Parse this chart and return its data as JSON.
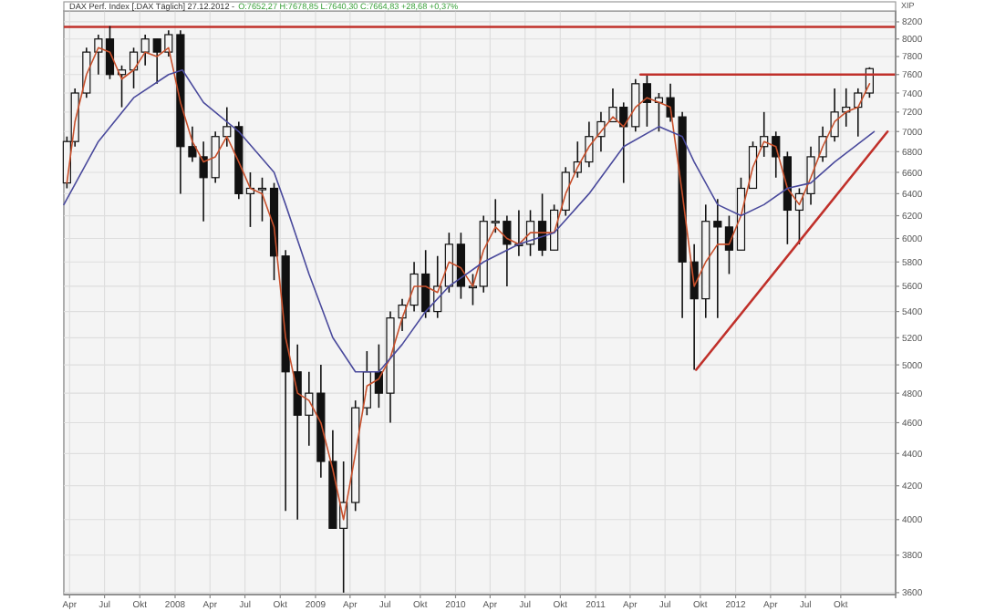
{
  "chart_data": {
    "type": "candlestick",
    "title": "DAX Perf. Index [.DAX Täglich] 27.12.2012 -",
    "subtitle": "O:7652,27 H:7678,85 L:7640,30 C:7664,83 +28,68 +0,37%",
    "ylabel": "XIP",
    "log": "y",
    "grid": true,
    "xlim": [
      "2007-03-17",
      "2013-02-21"
    ],
    "xticks": [
      {
        "value": "2007-04-01",
        "label": "Apr"
      },
      {
        "value": "2007-07-01",
        "label": "Jul"
      },
      {
        "value": "2007-10-01",
        "label": "Okt"
      },
      {
        "value": "2008-01-01",
        "label": "2008"
      },
      {
        "value": "2008-04-01",
        "label": "Apr"
      },
      {
        "value": "2008-07-01",
        "label": "Jul"
      },
      {
        "value": "2008-10-01",
        "label": "Okt"
      },
      {
        "value": "2009-01-01",
        "label": "2009"
      },
      {
        "value": "2009-04-01",
        "label": "Apr"
      },
      {
        "value": "2009-07-01",
        "label": "Jul"
      },
      {
        "value": "2009-10-01",
        "label": "Okt"
      },
      {
        "value": "2010-01-01",
        "label": "2010"
      },
      {
        "value": "2010-04-01",
        "label": "Apr"
      },
      {
        "value": "2010-07-01",
        "label": "Jul"
      },
      {
        "value": "2010-10-01",
        "label": "Okt"
      },
      {
        "value": "2011-01-01",
        "label": "2011"
      },
      {
        "value": "2011-04-01",
        "label": "Apr"
      },
      {
        "value": "2011-07-01",
        "label": "Jul"
      },
      {
        "value": "2011-10-01",
        "label": "Okt"
      },
      {
        "value": "2012-01-01",
        "label": "2012"
      },
      {
        "value": "2012-04-01",
        "label": "Apr"
      },
      {
        "value": "2012-07-01",
        "label": "Jul"
      },
      {
        "value": "2012-10-01",
        "label": "Okt"
      }
    ],
    "ylim": [
      3590,
      8330
    ],
    "yticks": [
      3600,
      3800,
      4000,
      4200,
      4400,
      4600,
      4800,
      5000,
      5200,
      5400,
      5600,
      5800,
      6000,
      6200,
      6400,
      6600,
      6800,
      7000,
      7200,
      7400,
      7600,
      7800,
      8000,
      8200
    ],
    "color": "#111111",
    "x": [
      "2007-03-25",
      "2007-04-15",
      "2007-05-15",
      "2007-06-15",
      "2007-07-15",
      "2007-08-15",
      "2007-09-15",
      "2007-10-15",
      "2007-11-15",
      "2007-12-15",
      "2008-01-15",
      "2008-02-15",
      "2008-03-15",
      "2008-04-15",
      "2008-05-15",
      "2008-06-15",
      "2008-07-15",
      "2008-08-15",
      "2008-09-15",
      "2008-10-15",
      "2008-11-15",
      "2008-12-15",
      "2009-01-15",
      "2009-02-15",
      "2009-03-15",
      "2009-04-15",
      "2009-05-15",
      "2009-06-15",
      "2009-07-15",
      "2009-08-15",
      "2009-09-15",
      "2009-10-15",
      "2009-11-15",
      "2009-12-15",
      "2010-01-15",
      "2010-02-15",
      "2010-03-15",
      "2010-04-15",
      "2010-05-15",
      "2010-06-15",
      "2010-07-15",
      "2010-08-15",
      "2010-09-15",
      "2010-10-15",
      "2010-11-15",
      "2010-12-15",
      "2011-01-15",
      "2011-02-15",
      "2011-03-15",
      "2011-04-15",
      "2011-05-15",
      "2011-06-15",
      "2011-07-15",
      "2011-08-15",
      "2011-09-15",
      "2011-10-15",
      "2011-11-15",
      "2011-12-15",
      "2012-01-15",
      "2012-02-15",
      "2012-03-15",
      "2012-04-15",
      "2012-05-15",
      "2012-06-15",
      "2012-07-15",
      "2012-08-15",
      "2012-09-15",
      "2012-10-15",
      "2012-11-15",
      "2012-12-15"
    ],
    "ohlc": [
      [
        6500,
        6950,
        6450,
        6900
      ],
      [
        6900,
        7450,
        6850,
        7400
      ],
      [
        7400,
        7900,
        7350,
        7850
      ],
      [
        7850,
        8050,
        7600,
        8000
      ],
      [
        8000,
        8150,
        7550,
        7600
      ],
      [
        7600,
        7700,
        7250,
        7650
      ],
      [
        7650,
        7900,
        7450,
        7850
      ],
      [
        7850,
        8050,
        7700,
        8000
      ],
      [
        8000,
        8000,
        7500,
        7850
      ],
      [
        7850,
        8100,
        7800,
        8050
      ],
      [
        8050,
        8100,
        6400,
        6850
      ],
      [
        6850,
        7050,
        6700,
        6750
      ],
      [
        6750,
        6900,
        6150,
        6550
      ],
      [
        6550,
        7000,
        6500,
        6950
      ],
      [
        6950,
        7250,
        6850,
        7050
      ],
      [
        7050,
        7100,
        6350,
        6400
      ],
      [
        6400,
        6600,
        6100,
        6450
      ],
      [
        6450,
        6550,
        6150,
        6450
      ],
      [
        6450,
        6500,
        5650,
        5850
      ],
      [
        5850,
        5900,
        4050,
        4950
      ],
      [
        4950,
        5150,
        4000,
        4650
      ],
      [
        4650,
        4950,
        4450,
        4800
      ],
      [
        4800,
        5000,
        4250,
        4350
      ],
      [
        4350,
        4550,
        3950,
        3950
      ],
      [
        3950,
        4350,
        3600,
        4100
      ],
      [
        4100,
        4750,
        4050,
        4700
      ],
      [
        4700,
        5100,
        4650,
        4950
      ],
      [
        4950,
        5150,
        4700,
        4800
      ],
      [
        4800,
        5400,
        4600,
        5350
      ],
      [
        5350,
        5500,
        5250,
        5450
      ],
      [
        5450,
        5800,
        5400,
        5700
      ],
      [
        5700,
        5900,
        5350,
        5400
      ],
      [
        5400,
        5850,
        5350,
        5600
      ],
      [
        5600,
        6050,
        5550,
        5950
      ],
      [
        5950,
        6050,
        5500,
        5600
      ],
      [
        5600,
        5700,
        5450,
        5600
      ],
      [
        5600,
        6200,
        5550,
        6150
      ],
      [
        6150,
        6350,
        6050,
        6150
      ],
      [
        6150,
        6200,
        5600,
        5950
      ],
      [
        5950,
        6250,
        5850,
        5950
      ],
      [
        5950,
        6250,
        5850,
        6150
      ],
      [
        6150,
        6400,
        5850,
        5900
      ],
      [
        5900,
        6300,
        5900,
        6250
      ],
      [
        6250,
        6650,
        6200,
        6600
      ],
      [
        6600,
        6900,
        6550,
        6700
      ],
      [
        6700,
        7100,
        6650,
        6950
      ],
      [
        6950,
        7200,
        6800,
        7100
      ],
      [
        7100,
        7450,
        7100,
        7250
      ],
      [
        7250,
        7300,
        6500,
        7050
      ],
      [
        7050,
        7550,
        7000,
        7500
      ],
      [
        7500,
        7600,
        7050,
        7300
      ],
      [
        7300,
        7400,
        7000,
        7350
      ],
      [
        7350,
        7500,
        7100,
        7150
      ],
      [
        7150,
        7200,
        5350,
        5800
      ],
      [
        5800,
        5950,
        4965,
        5500
      ],
      [
        5500,
        6300,
        5350,
        6150
      ],
      [
        6150,
        6350,
        5350,
        6100
      ],
      [
        6100,
        6200,
        5700,
        5900
      ],
      [
        5900,
        6550,
        5900,
        6450
      ],
      [
        6450,
        6900,
        6450,
        6850
      ],
      [
        6850,
        7200,
        6750,
        6950
      ],
      [
        6950,
        7000,
        6550,
        6750
      ],
      [
        6750,
        6800,
        5950,
        6250
      ],
      [
        6250,
        6450,
        5950,
        6400
      ],
      [
        6400,
        6850,
        6300,
        6750
      ],
      [
        6750,
        7050,
        6700,
        6950
      ],
      [
        6950,
        7450,
        6900,
        7200
      ],
      [
        7200,
        7450,
        7050,
        7250
      ],
      [
        7250,
        7450,
        6950,
        7400
      ],
      [
        7400,
        7680,
        7350,
        7665
      ]
    ],
    "series": [
      {
        "type": "line",
        "color": "#c8502c",
        "values": [
          6500,
          7100,
          7600,
          7900,
          7850,
          7550,
          7650,
          7850,
          7800,
          7900,
          7300,
          6900,
          6700,
          6750,
          6950,
          6700,
          6450,
          6400,
          6100,
          5200,
          4800,
          4750,
          4600,
          4300,
          4000,
          4400,
          4850,
          4900,
          5050,
          5350,
          5600,
          5600,
          5550,
          5800,
          5750,
          5600,
          5900,
          6100,
          6000,
          5950,
          6050,
          6050,
          6050,
          6400,
          6650,
          6850,
          7000,
          7150,
          7050,
          7250,
          7350,
          7300,
          7250,
          6400,
          5600,
          5800,
          5950,
          5950,
          6200,
          6650,
          6900,
          6850,
          6450,
          6300,
          6550,
          6850,
          7100,
          7200,
          7250,
          7500
        ]
      },
      {
        "type": "line",
        "color": "#4a4a9c",
        "x": [
          "2007-03-17",
          "2007-06-15",
          "2007-09-15",
          "2007-12-15",
          "2008-01-20",
          "2008-03-15",
          "2008-06-15",
          "2008-09-15",
          "2008-10-15",
          "2008-12-15",
          "2009-02-15",
          "2009-04-15",
          "2009-06-15",
          "2009-08-15",
          "2009-10-15",
          "2009-12-15",
          "2010-03-15",
          "2010-06-15",
          "2010-09-15",
          "2010-12-15",
          "2011-03-15",
          "2011-06-15",
          "2011-08-15",
          "2011-09-15",
          "2011-11-15",
          "2012-01-15",
          "2012-03-15",
          "2012-05-15",
          "2012-07-15",
          "2012-09-15",
          "2012-12-27"
        ],
        "values": [
          6300,
          6900,
          7350,
          7600,
          7650,
          7300,
          7000,
          6600,
          6300,
          5700,
          5200,
          4950,
          4950,
          5150,
          5400,
          5600,
          5800,
          5950,
          6050,
          6400,
          6850,
          7050,
          6950,
          6700,
          6300,
          6200,
          6300,
          6450,
          6500,
          6700,
          7000
        ]
      },
      {
        "type": "line",
        "color": "#c0302a",
        "x": [
          "2011-04-28",
          "2013-02-21"
        ],
        "values": [
          7600,
          7600
        ]
      },
      {
        "type": "line",
        "color": "#c0302a",
        "x": [
          "2011-09-20",
          "2013-01-31"
        ],
        "values": [
          4965,
          7000
        ]
      }
    ],
    "ref_lines": [
      {
        "axis": "y",
        "value": 8140,
        "color": "#c0302a"
      }
    ]
  }
}
